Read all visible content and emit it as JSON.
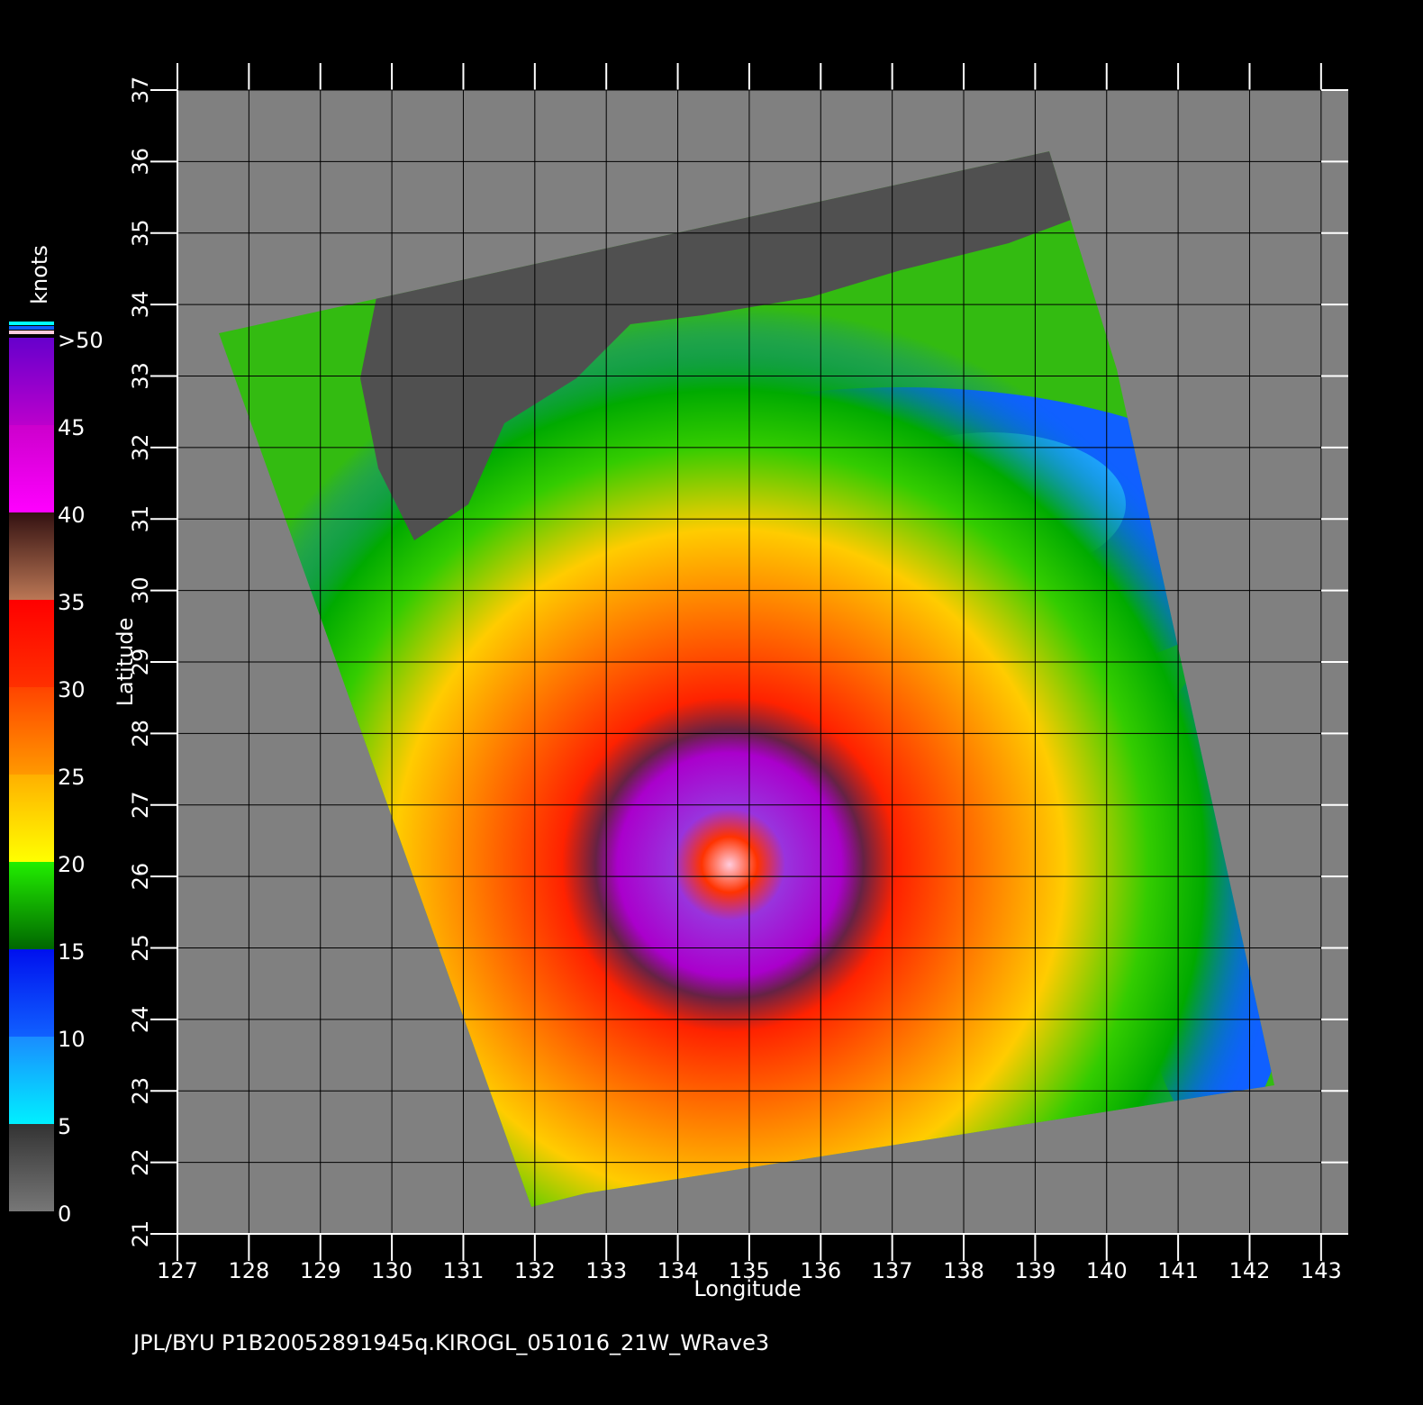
{
  "map": {
    "title": "JPL/BYU  P1B20052891945q.KIROGL_051016_21W_WRave3",
    "xlabel": "Longitude",
    "ylabel": "Latitude",
    "xlim": [
      127,
      143.38
    ],
    "xticks": [
      127,
      128,
      129,
      130,
      131,
      132,
      133,
      134,
      135,
      136,
      137,
      138,
      139,
      140,
      141,
      142,
      143
    ],
    "ylim": [
      21,
      37
    ],
    "yticks": [
      21,
      22,
      23,
      24,
      25,
      26,
      27,
      28,
      29,
      30,
      31,
      32,
      33,
      34,
      35,
      36,
      37
    ],
    "grid": true,
    "colorbar": {
      "label": "knots",
      "lim": [
        0,
        50
      ],
      "ticks": [
        0,
        5,
        10,
        15,
        20,
        25,
        30,
        35,
        40,
        {
          "value": 50,
          "label": ">50"
        },
        45
      ],
      "colors": [
        [
          "#777777",
          "#333333"
        ],
        [
          "#00f0ff",
          "#1a8cff"
        ],
        [
          "#1060ff",
          "#0010ee"
        ],
        [
          "#006600",
          "#22ee00"
        ],
        [
          "#ffff00",
          "#ffb000"
        ],
        [
          "#ff9900",
          "#ff4400"
        ],
        [
          "#ff3000",
          "#ff0000"
        ],
        [
          "#bb7755",
          "#331111"
        ],
        [
          "#ff00ff",
          "#cc00cc"
        ],
        [
          "#bb00cc",
          "#6600cc"
        ]
      ]
    }
  }
}
